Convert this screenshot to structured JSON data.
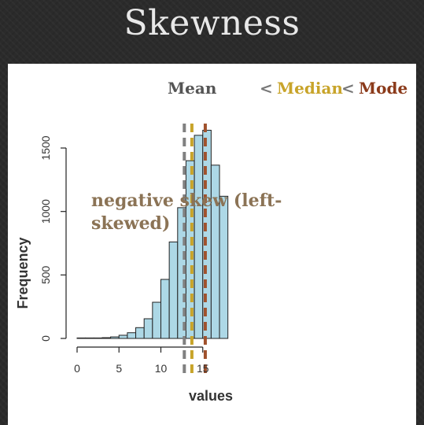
{
  "slide": {
    "title": "Skewness"
  },
  "chart_data": {
    "type": "bar",
    "xlabel": "values",
    "ylabel": "Frequency",
    "xlim": [
      0,
      18
    ],
    "ylim": [
      0,
      1650
    ],
    "x_ticks": [
      0,
      5,
      10,
      15
    ],
    "y_ticks": [
      0,
      500,
      1000,
      1500
    ],
    "bins": [
      {
        "x0": 0,
        "x1": 1,
        "value": 0
      },
      {
        "x0": 1,
        "x1": 2,
        "value": 0
      },
      {
        "x0": 2,
        "x1": 3,
        "value": 2
      },
      {
        "x0": 3,
        "x1": 4,
        "value": 6
      },
      {
        "x0": 4,
        "x1": 5,
        "value": 12
      },
      {
        "x0": 5,
        "x1": 6,
        "value": 25
      },
      {
        "x0": 6,
        "x1": 7,
        "value": 45
      },
      {
        "x0": 7,
        "x1": 8,
        "value": 85
      },
      {
        "x0": 8,
        "x1": 9,
        "value": 155
      },
      {
        "x0": 9,
        "x1": 10,
        "value": 285
      },
      {
        "x0": 10,
        "x1": 11,
        "value": 465
      },
      {
        "x0": 11,
        "x1": 12,
        "value": 760
      },
      {
        "x0": 12,
        "x1": 13,
        "value": 1030
      },
      {
        "x0": 13,
        "x1": 14,
        "value": 1400
      },
      {
        "x0": 14,
        "x1": 15,
        "value": 1600
      },
      {
        "x0": 15,
        "x1": 16,
        "value": 1640
      },
      {
        "x0": 16,
        "x1": 17,
        "value": 1365
      },
      {
        "x0": 17,
        "x1": 18,
        "value": 1120
      }
    ],
    "bar_color": "#add8e6",
    "vlines": [
      {
        "name": "Mean",
        "x": 12.8,
        "color": "#808080"
      },
      {
        "name": "Median",
        "x": 13.7,
        "color": "#c8a42a"
      },
      {
        "name": "Mode",
        "x": 15.3,
        "color": "#a0522d"
      }
    ],
    "legend": {
      "mean": "Mean",
      "lt1": "<",
      "median": "Median",
      "lt2": "<",
      "mode": "Mode",
      "colors": {
        "mean": "#555555",
        "lt": "#777777",
        "median": "#c8a42a",
        "mode": "#8b3a1a"
      }
    },
    "annotation": {
      "line1": "negative skew (left-",
      "line2": "skewed)"
    }
  }
}
